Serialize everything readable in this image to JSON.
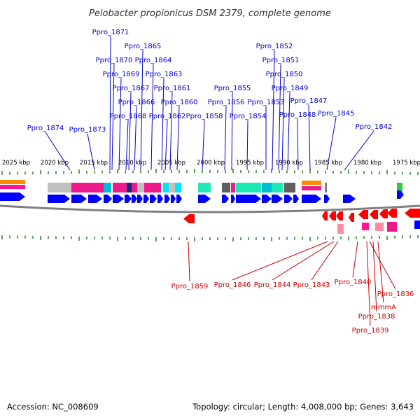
{
  "title": "Pelobacter propionicus DSM 2379, complete genome",
  "footer": {
    "accession": "Accession: NC_008609",
    "summary": "Topology: circular; Length: 4,008,000 bp; Genes: 3,643"
  },
  "scale_labels": [
    "2025 kbp",
    "2020 kbp",
    "2015 kbp",
    "2010 kbp",
    "2005 kbp",
    "2000 kbp",
    "1995 kbp",
    "1990 kbp",
    "1985 kbp",
    "1980 kbp",
    "1975 kbp"
  ],
  "forward_genes": [
    "Ppro_1871",
    "Ppro_1865",
    "Ppro_1870",
    "Ppro_1864",
    "Ppro_1869",
    "Ppro_1863",
    "Ppro_1867",
    "Ppro_1861",
    "Ppro_1866",
    "Ppro_1860",
    "Ppro_1868",
    "Ppro_1862",
    "Ppro_1858",
    "Ppro_1874",
    "Ppro_1873",
    "Ppro_1852",
    "Ppro_1851",
    "Ppro_1850",
    "Ppro_1849",
    "Ppro_1855",
    "Ppro_1856",
    "Ppro_1853",
    "Ppro_1847",
    "Ppro_1854",
    "Ppro_1848",
    "Ppro_1845",
    "Ppro_1842"
  ],
  "reverse_genes": [
    "Ppro_1859",
    "Ppro_1846",
    "Ppro_1844",
    "Ppro_1843",
    "Ppro_1840",
    "Ppro_1836",
    "mmmA",
    "Ppro_1838",
    "Ppro_1839"
  ],
  "colors": {
    "forward_gene": "#0000ff",
    "reverse_gene": "#ff0000",
    "forward_label": "#0000cc",
    "reverse_label": "#cc0000",
    "backbone": "#808080",
    "tick": "#2e8b2e"
  }
}
